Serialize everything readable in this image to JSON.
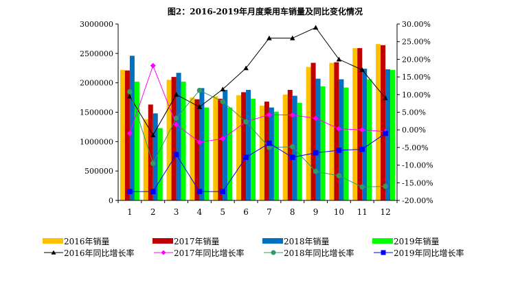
{
  "chart_data": {
    "type": "bar",
    "title": "图2：2016-2019年月度乘用车销量及同比变化情况",
    "categories": [
      "1",
      "2",
      "3",
      "4",
      "5",
      "6",
      "7",
      "8",
      "9",
      "10",
      "11",
      "12"
    ],
    "left_axis": {
      "ylim": [
        0,
        3000000
      ],
      "ticks": [
        "0",
        "500000",
        "1000000",
        "1500000",
        "2000000",
        "2500000",
        "3000000"
      ]
    },
    "right_axis": {
      "ylim": [
        -20,
        30
      ],
      "ticks": [
        "-20.00%",
        "-15.00%",
        "-10.00%",
        "-5.00%",
        "0.00%",
        "5.00%",
        "10.00%",
        "15.00%",
        "20.00%",
        "25.00%",
        "30.00%"
      ]
    },
    "bar_series": [
      {
        "name": "2016年销量",
        "color": "#FFC000",
        "values": [
          2220000,
          1380000,
          2050000,
          1750000,
          1770000,
          1790000,
          1610000,
          1800000,
          2270000,
          2340000,
          2590000,
          2660000
        ]
      },
      {
        "name": "2017年销量",
        "color": "#C00000",
        "values": [
          2210000,
          1630000,
          2100000,
          1720000,
          1730000,
          1840000,
          1680000,
          1880000,
          2340000,
          2350000,
          2590000,
          2640000
        ]
      },
      {
        "name": "2018年销量",
        "color": "#0070C0",
        "values": [
          2460000,
          1480000,
          2170000,
          1910000,
          1880000,
          1880000,
          1580000,
          1780000,
          2070000,
          2060000,
          2240000,
          2230000
        ]
      },
      {
        "name": "2019年销量",
        "color": "#00FF00",
        "values": [
          2020000,
          1230000,
          2020000,
          1580000,
          1580000,
          1730000,
          1510000,
          1660000,
          1940000,
          1920000,
          2060000,
          2220000
        ]
      }
    ],
    "line_series": [
      {
        "name": "2016年同比增长率",
        "color": "#000000",
        "marker": "triangle",
        "values": [
          9.5,
          -1.5,
          10,
          6.5,
          11.5,
          17.5,
          26,
          26,
          29,
          20,
          17,
          9
        ]
      },
      {
        "name": "2017年同比增长率",
        "color": "#FF00FF",
        "marker": "diamond",
        "values": [
          -1,
          18.2,
          1.5,
          -3.5,
          -2.5,
          2.3,
          4.3,
          4.2,
          3.3,
          0.3,
          0,
          -0.5
        ]
      },
      {
        "name": "2018年同比增长率",
        "color": "#339966",
        "marker": "circle",
        "values": [
          10.8,
          -9.5,
          3.3,
          11.2,
          8,
          2.3,
          -5,
          -4.8,
          -11.8,
          -13,
          -16.2,
          -16
        ]
      },
      {
        "name": "2019年同比增长率",
        "color": "#0000FF",
        "marker": "square",
        "values": [
          -17.5,
          -17.5,
          -7,
          -17.5,
          -17.5,
          -7.8,
          -3.8,
          -7.8,
          -6.5,
          -5.8,
          -5.5,
          -1
        ]
      }
    ],
    "legend": "bottom"
  }
}
